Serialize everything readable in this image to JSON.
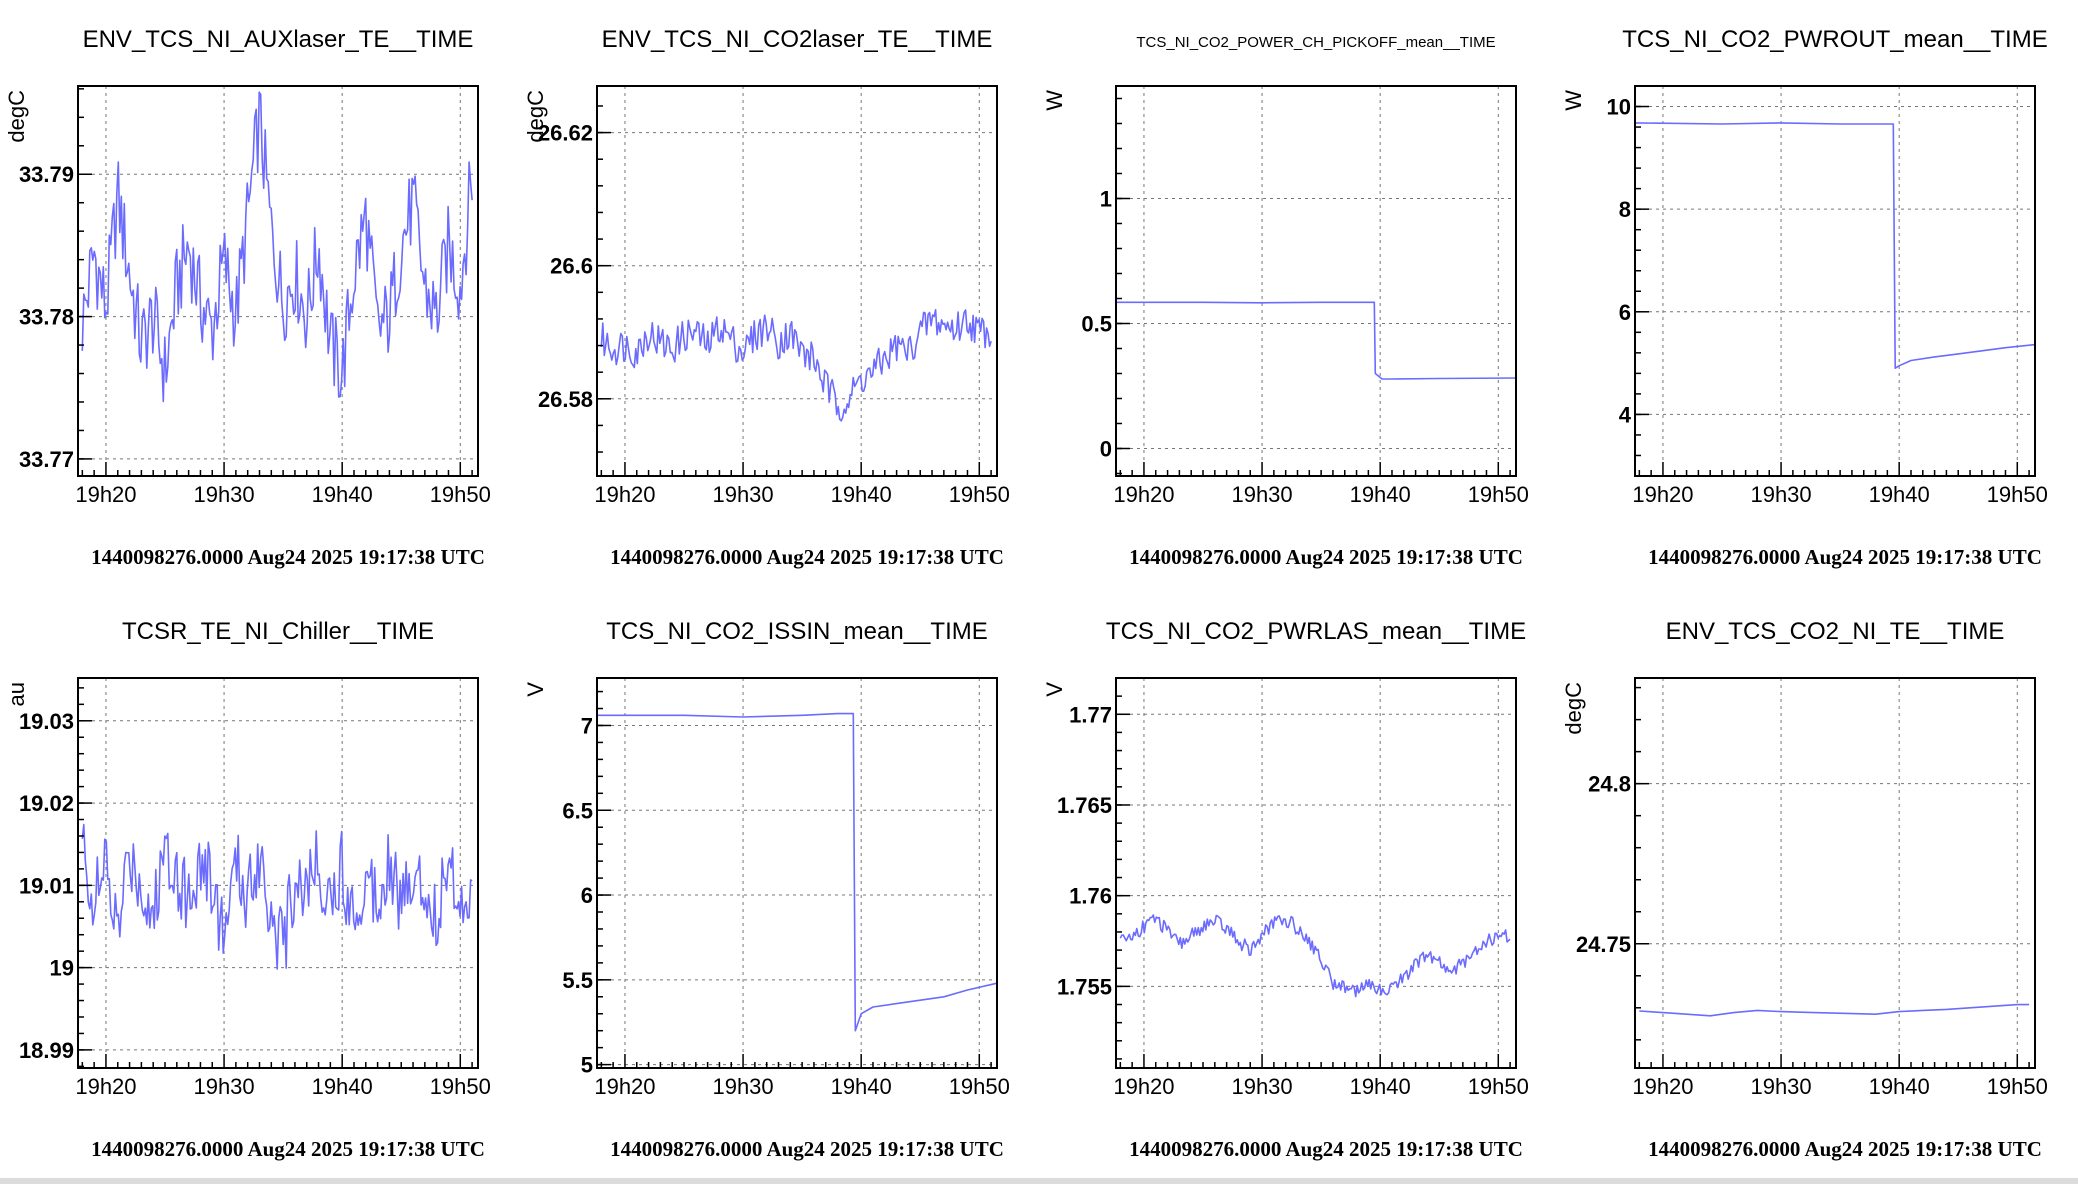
{
  "timestamp_label": "1440098276.0000 Aug24 2025 19:17:38 UTC",
  "colors": {
    "series": "#6b6bff",
    "grid": "#777777",
    "frame": "#000000"
  },
  "chart_data": [
    {
      "type": "line",
      "title": "ENV_TCS_NI_AUXlaser_TE__TIME",
      "ylabel": "degC",
      "xlim": [
        "19:17:38",
        "19:51:30"
      ],
      "x_ticks": [
        "19h20",
        "19h30",
        "19h40",
        "19h50"
      ],
      "ylim": [
        33.7688,
        33.7962
      ],
      "y_ticks": [
        "33.77",
        "33.78",
        "33.79"
      ],
      "y_tick_values": [
        33.77,
        33.78,
        33.79
      ],
      "grid": true,
      "x": [
        "19:18",
        "19:19",
        "19:20",
        "19:21",
        "19:22",
        "19:23",
        "19:24",
        "19:25",
        "19:26",
        "19:27",
        "19:28",
        "19:29",
        "19:30",
        "19:31",
        "19:32",
        "19:33",
        "19:34",
        "19:35",
        "19:36",
        "19:37",
        "19:38",
        "19:39",
        "19:40",
        "19:41",
        "19:42",
        "19:43",
        "19:44",
        "19:45",
        "19:46",
        "19:47",
        "19:48",
        "19:49",
        "19:50",
        "19:51"
      ],
      "series": [
        {
          "values": [
            33.7795,
            33.7845,
            33.7805,
            33.7885,
            33.783,
            33.778,
            33.78,
            33.776,
            33.782,
            33.785,
            33.781,
            33.779,
            33.784,
            33.78,
            33.787,
            33.794,
            33.786,
            33.781,
            33.783,
            33.78,
            33.785,
            33.778,
            33.776,
            33.783,
            33.787,
            33.779,
            33.78,
            33.785,
            33.788,
            33.782,
            33.78,
            33.785,
            33.782,
            33.79
          ]
        }
      ]
    },
    {
      "type": "line",
      "title": "ENV_TCS_NI_CO2laser_TE__TIME",
      "ylabel": "degC",
      "xlim": [
        "19:17:38",
        "19:51:30"
      ],
      "x_ticks": [
        "19h20",
        "19h30",
        "19h40",
        "19h50"
      ],
      "ylim": [
        26.5684,
        26.627
      ],
      "y_ticks": [
        "26.58",
        "26.6",
        "26.62"
      ],
      "y_tick_values": [
        26.58,
        26.6,
        26.62
      ],
      "grid": true,
      "x": [
        "19:18",
        "19:19",
        "19:20",
        "19:21",
        "19:22",
        "19:23",
        "19:24",
        "19:25",
        "19:26",
        "19:27",
        "19:28",
        "19:29",
        "19:30",
        "19:31",
        "19:32",
        "19:33",
        "19:34",
        "19:35",
        "19:36",
        "19:37",
        "19:38",
        "19:39",
        "19:40",
        "19:41",
        "19:42",
        "19:43",
        "19:44",
        "19:45",
        "19:46",
        "19:47",
        "19:48",
        "19:49",
        "19:50",
        "19:51"
      ],
      "series": [
        {
          "values": [
            26.589,
            26.5875,
            26.5882,
            26.587,
            26.59,
            26.5885,
            26.5875,
            26.5895,
            26.59,
            26.588,
            26.591,
            26.589,
            26.587,
            26.5895,
            26.591,
            26.5885,
            26.59,
            26.587,
            26.586,
            26.582,
            26.579,
            26.58,
            26.583,
            26.584,
            26.586,
            26.588,
            26.587,
            26.59,
            26.592,
            26.591,
            26.5905,
            26.592,
            26.59,
            26.5905
          ]
        }
      ]
    },
    {
      "type": "line",
      "title": "TCS_NI_CO2_POWER_CH_PICKOFF_mean__TIME",
      "ylabel": "W",
      "xlim": [
        "19:17:38",
        "19:51:30"
      ],
      "x_ticks": [
        "19h20",
        "19h30",
        "19h40",
        "19h50"
      ],
      "ylim": [
        -0.11,
        1.45
      ],
      "y_ticks": [
        "0",
        "0.5",
        "1"
      ],
      "y_tick_values": [
        0,
        0.5,
        1
      ],
      "grid": true,
      "x": [
        "19:17:38",
        "19:25",
        "19:30",
        "19:35",
        "19:39:30",
        "19:39:35",
        "19:40:10",
        "19:41",
        "19:45",
        "19:51:30"
      ],
      "series": [
        {
          "values": [
            0.585,
            0.585,
            0.583,
            0.585,
            0.585,
            0.3,
            0.278,
            0.278,
            0.28,
            0.282
          ]
        }
      ]
    },
    {
      "type": "line",
      "title": "TCS_NI_CO2_PWROUT_mean__TIME",
      "ylabel": "W",
      "xlim": [
        "19:17:38",
        "19:51:30"
      ],
      "x_ticks": [
        "19h20",
        "19h30",
        "19h40",
        "19h50"
      ],
      "ylim": [
        2.8,
        10.4
      ],
      "y_ticks": [
        "4",
        "6",
        "8",
        "10"
      ],
      "y_tick_values": [
        4,
        6,
        8,
        10
      ],
      "grid": true,
      "x": [
        "19:17:38",
        "19:25",
        "19:30",
        "19:35",
        "19:39:30",
        "19:39:40",
        "19:40",
        "19:41",
        "19:43",
        "19:45",
        "19:47",
        "19:49",
        "19:51:30"
      ],
      "series": [
        {
          "values": [
            9.68,
            9.66,
            9.68,
            9.66,
            9.66,
            4.9,
            4.95,
            5.05,
            5.12,
            5.18,
            5.24,
            5.3,
            5.36
          ]
        }
      ]
    },
    {
      "type": "line",
      "title": "TCSR_TE_NI_Chiller__TIME",
      "ylabel": "au",
      "xlim": [
        "19:17:38",
        "19:51:30"
      ],
      "x_ticks": [
        "19h20",
        "19h30",
        "19h40",
        "19h50"
      ],
      "ylim": [
        18.9878,
        19.0352
      ],
      "y_ticks": [
        "18.99",
        "19",
        "19.01",
        "19.02",
        "19.03"
      ],
      "y_tick_values": [
        18.99,
        19.0,
        19.01,
        19.02,
        19.03
      ],
      "grid": true,
      "x": [
        "19:18",
        "19:19",
        "19:20",
        "19:21",
        "19:22",
        "19:23",
        "19:24",
        "19:25",
        "19:26",
        "19:27",
        "19:28",
        "19:29",
        "19:30",
        "19:31",
        "19:32",
        "19:33",
        "19:34",
        "19:35",
        "19:36",
        "19:37",
        "19:38",
        "19:39",
        "19:40",
        "19:41",
        "19:42",
        "19:43",
        "19:44",
        "19:45",
        "19:46",
        "19:47",
        "19:48",
        "19:49",
        "19:50",
        "19:51"
      ],
      "series": [
        {
          "values": [
            19.015,
            19.008,
            19.012,
            19.004,
            19.014,
            19.01,
            19.006,
            19.015,
            19.012,
            19.008,
            19.013,
            19.01,
            19.004,
            19.012,
            19.009,
            19.014,
            19.007,
            19.002,
            19.011,
            19.01,
            19.013,
            19.008,
            19.012,
            19.006,
            19.011,
            19.009,
            19.014,
            19.007,
            19.012,
            19.01,
            19.006,
            19.013,
            19.008,
            19.011
          ]
        }
      ]
    },
    {
      "type": "line",
      "title": "TCS_NI_CO2_ISSIN_mean__TIME",
      "ylabel": "V",
      "xlim": [
        "19:17:38",
        "19:51:30"
      ],
      "x_ticks": [
        "19h20",
        "19h30",
        "19h40",
        "19h50"
      ],
      "ylim": [
        4.98,
        7.28
      ],
      "y_ticks": [
        "5",
        "5.5",
        "6",
        "6.5",
        "7"
      ],
      "y_tick_values": [
        5,
        5.5,
        6,
        6.5,
        7
      ],
      "grid": true,
      "x": [
        "19:17:38",
        "19:25",
        "19:30",
        "19:35",
        "19:38",
        "19:39:20",
        "19:39:30",
        "19:40",
        "19:41",
        "19:43",
        "19:45",
        "19:47",
        "19:49",
        "19:51:30"
      ],
      "series": [
        {
          "values": [
            7.06,
            7.06,
            7.05,
            7.06,
            7.07,
            7.07,
            5.2,
            5.3,
            5.34,
            5.36,
            5.38,
            5.4,
            5.44,
            5.48
          ]
        }
      ]
    },
    {
      "type": "line",
      "title": "TCS_NI_CO2_PWRLAS_mean__TIME",
      "ylabel": "V",
      "xlim": [
        "19:17:38",
        "19:51:30"
      ],
      "x_ticks": [
        "19h20",
        "19h30",
        "19h40",
        "19h50"
      ],
      "ylim": [
        1.7505,
        1.772
      ],
      "y_ticks": [
        "1.755",
        "1.76",
        "1.765",
        "1.77"
      ],
      "y_tick_values": [
        1.755,
        1.76,
        1.765,
        1.77
      ],
      "grid": true,
      "x": [
        "19:18",
        "19:19",
        "19:20",
        "19:21",
        "19:22",
        "19:23",
        "19:24",
        "19:25",
        "19:26",
        "19:27",
        "19:28",
        "19:29",
        "19:30",
        "19:31",
        "19:32",
        "19:33",
        "19:34",
        "19:35",
        "19:36",
        "19:37",
        "19:38",
        "19:39",
        "19:40",
        "19:41",
        "19:42",
        "19:43",
        "19:44",
        "19:45",
        "19:46",
        "19:47",
        "19:48",
        "19:49",
        "19:50",
        "19:51"
      ],
      "series": [
        {
          "values": [
            1.7575,
            1.7578,
            1.7583,
            1.7588,
            1.758,
            1.7573,
            1.7578,
            1.7583,
            1.7586,
            1.7582,
            1.7575,
            1.757,
            1.7578,
            1.7585,
            1.7587,
            1.7582,
            1.7575,
            1.7565,
            1.7552,
            1.755,
            1.7548,
            1.755,
            1.7548,
            1.755,
            1.7555,
            1.7562,
            1.7567,
            1.7563,
            1.7558,
            1.7563,
            1.757,
            1.7575,
            1.7578,
            1.7578
          ]
        }
      ]
    },
    {
      "type": "line",
      "title": "ENV_TCS_CO2_NI_TE__TIME",
      "ylabel": "degC",
      "xlim": [
        "19:17:38",
        "19:51:30"
      ],
      "x_ticks": [
        "19h20",
        "19h30",
        "19h40",
        "19h50"
      ],
      "ylim": [
        24.7112,
        24.833
      ],
      "y_ticks": [
        "24.75",
        "24.8"
      ],
      "y_tick_values": [
        24.75,
        24.8
      ],
      "grid": true,
      "x": [
        "19:18",
        "19:20",
        "19:22",
        "19:24",
        "19:26",
        "19:28",
        "19:30",
        "19:32",
        "19:34",
        "19:36",
        "19:38",
        "19:40",
        "19:42",
        "19:44",
        "19:46",
        "19:48",
        "19:50",
        "19:51"
      ],
      "series": [
        {
          "values": [
            24.729,
            24.7285,
            24.728,
            24.7275,
            24.7285,
            24.7292,
            24.7288,
            24.7286,
            24.7284,
            24.7282,
            24.728,
            24.7288,
            24.7292,
            24.7295,
            24.73,
            24.7305,
            24.731,
            24.731
          ]
        }
      ]
    }
  ]
}
